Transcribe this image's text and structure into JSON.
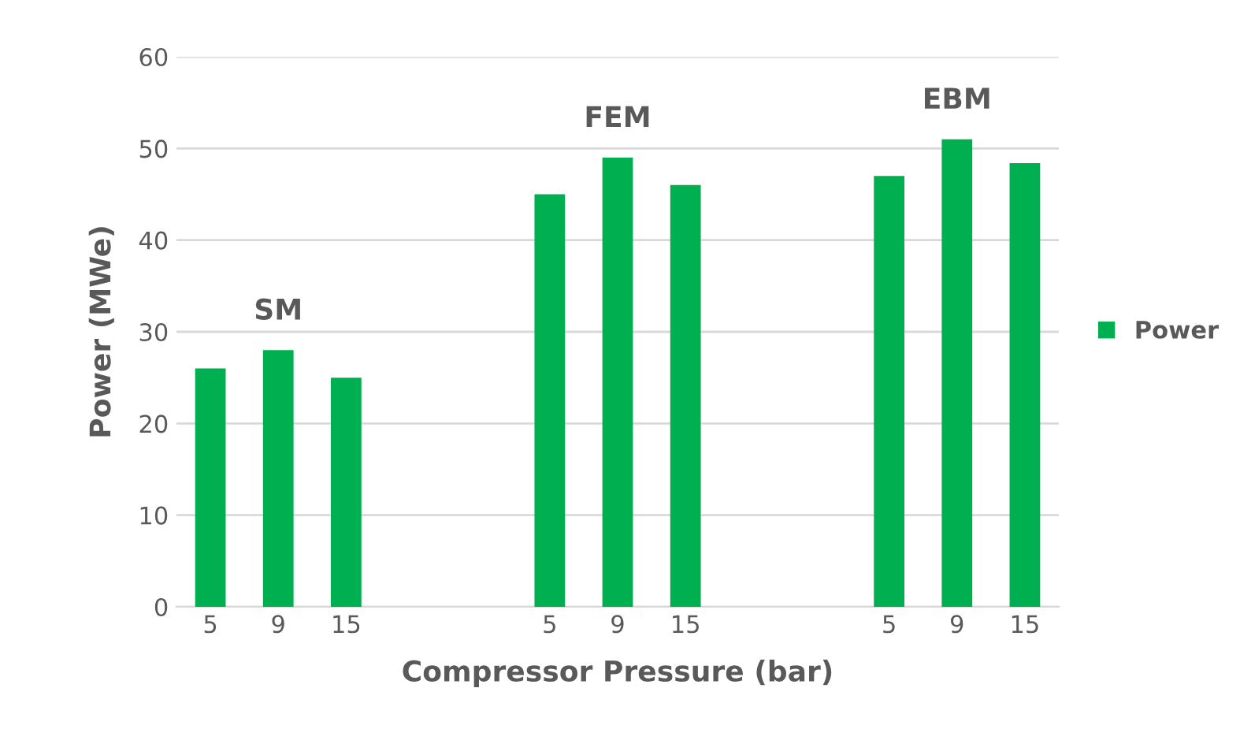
{
  "chart_data": {
    "type": "bar",
    "xlabel": "Compressor Pressure (bar)",
    "ylabel": "Power (MWe)",
    "categories": [
      "5",
      "9",
      "15",
      null,
      null,
      "5",
      "9",
      "15",
      null,
      null,
      "5",
      "9",
      "15"
    ],
    "series": [
      {
        "name": "Power",
        "color": "#00b050",
        "values": [
          26,
          28,
          25,
          null,
          null,
          45,
          49,
          46,
          null,
          null,
          47,
          51,
          48.4
        ]
      }
    ],
    "annotations": [
      "SM",
      "FEM",
      "EBM"
    ],
    "ylim": [
      0,
      60
    ],
    "yticks": [
      0,
      10,
      20,
      30,
      40,
      50,
      60
    ],
    "grid": "y",
    "legend": "right"
  }
}
